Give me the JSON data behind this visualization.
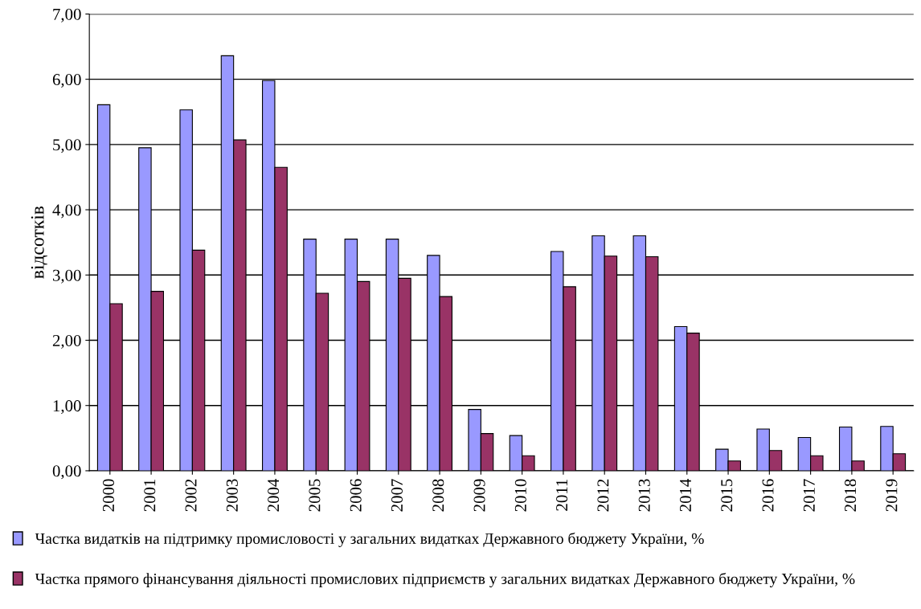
{
  "chart_data": {
    "type": "bar",
    "ylabel": "відсотків",
    "categories": [
      "2000",
      "2001",
      "2002",
      "2003",
      "2004",
      "2005",
      "2006",
      "2007",
      "2008",
      "2009",
      "2010",
      "2011",
      "2012",
      "2013",
      "2014",
      "2015",
      "2016",
      "2017",
      "2018",
      "2019"
    ],
    "series": [
      {
        "name": "Частка видатків на підтримку промисловості у загальних видатках Державного бюджету України, %",
        "color": "#9999ff",
        "values": [
          5.61,
          4.95,
          5.53,
          6.36,
          5.98,
          3.55,
          3.55,
          3.55,
          3.3,
          0.94,
          0.54,
          3.36,
          3.6,
          3.6,
          2.21,
          0.33,
          0.64,
          0.51,
          0.67,
          0.68
        ]
      },
      {
        "name": "Частка прямого фінансування діяльності промислових підприємств у загальних видатках Державного бюджету України, %",
        "color": "#993366",
        "values": [
          2.56,
          2.75,
          3.38,
          5.07,
          4.65,
          2.72,
          2.9,
          2.95,
          2.67,
          0.57,
          0.23,
          2.82,
          3.29,
          3.28,
          2.11,
          0.15,
          0.31,
          0.23,
          0.15,
          0.26
        ]
      }
    ],
    "ylim": [
      0,
      7
    ],
    "yticks": [
      {
        "value": 0,
        "label": "0,00"
      },
      {
        "value": 1,
        "label": "1,00"
      },
      {
        "value": 2,
        "label": "2,00"
      },
      {
        "value": 3,
        "label": "3,00"
      },
      {
        "value": 4,
        "label": "4,00"
      },
      {
        "value": 5,
        "label": "5,00"
      },
      {
        "value": 6,
        "label": "6,00"
      },
      {
        "value": 7,
        "label": "7,00"
      }
    ],
    "grid": "y",
    "legend": "bottom"
  }
}
